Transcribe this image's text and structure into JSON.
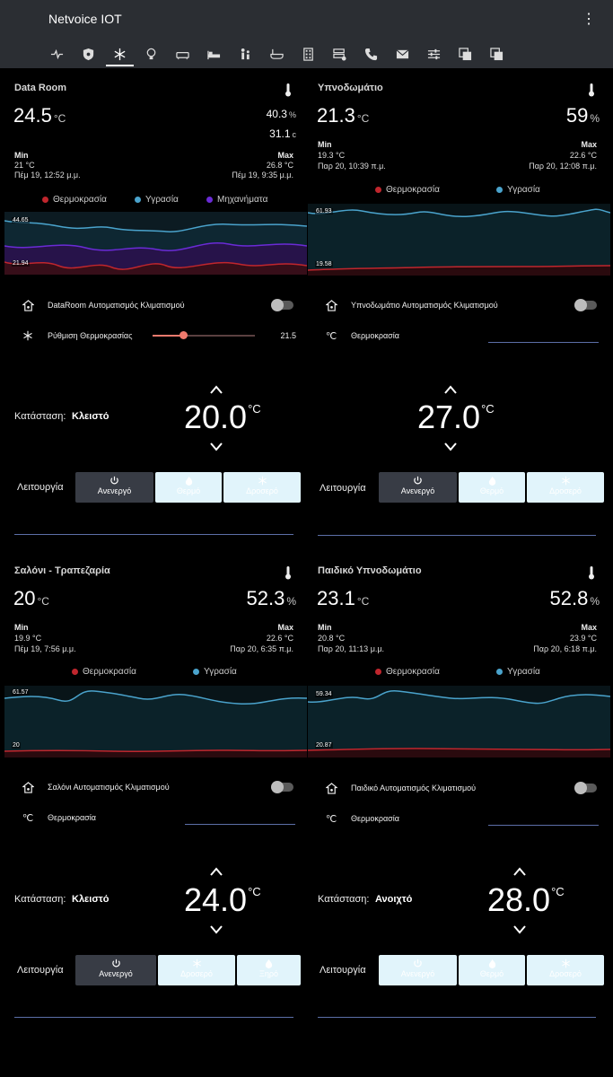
{
  "header": {
    "title": "Netvoice IOT",
    "tabs": [
      "pulse-icon",
      "shield-icon",
      "snowflake-icon",
      "bulb-icon",
      "sofa-icon",
      "bed-icon",
      "kids-icon",
      "bath-icon",
      "building-icon",
      "server-icon",
      "phone-icon",
      "mail-icon",
      "sliders-icon",
      "copy-icon",
      "copy2-icon"
    ],
    "active_tab": 2
  },
  "colors": {
    "temperature": "#c0262d",
    "humidity": "#4aa3cc",
    "machines": "#6a2bd6",
    "accent_line": "#5c6fa8",
    "slider": "#ef7a6d"
  },
  "cards": [
    {
      "title": "Data Room",
      "temp": "24.5",
      "temp_unit": "°C",
      "hum_a": "40.3",
      "hum_a_unit": "%",
      "hum_b": "31.1",
      "hum_b_unit": "c",
      "min_label": "Min",
      "min_val": "21 °C",
      "min_time": "Πέμ 19, 12:52 μ.μ.",
      "max_label": "Max",
      "max_val": "26.8 °C",
      "max_time": "Πέμ 19, 9:35 μ.μ.",
      "legend": [
        "Θερμοκρασία",
        "Υγρασία",
        "Μηχανήματα"
      ],
      "chart_hi": "44.65",
      "chart_lo": "21.94",
      "auto_label": "DataRoom Αυτοματισμός Κλιματισμού",
      "setting_label": "Ρύθμιση Θερμοκρασίας",
      "setting_value": "21.5",
      "setting_fraction": 0.3,
      "state_label": "Κατάσταση:",
      "state_value": "Κλειστό",
      "target": "20.0",
      "target_unit": "°C",
      "mode_label": "Λειτουργία",
      "modes": [
        "Ανενεργό",
        "Θερμό",
        "Δροσερό"
      ]
    },
    {
      "title": "Υπνοδωμάτιο",
      "temp": "21.3",
      "temp_unit": "°C",
      "hum_a": "59",
      "hum_a_unit": "%",
      "min_label": "Min",
      "min_val": "19.3 °C",
      "min_time": "Παρ 20, 10:39 π.μ.",
      "max_label": "Max",
      "max_val": "22.6 °C",
      "max_time": "Παρ 20, 12:08 π.μ.",
      "legend": [
        "Θερμοκρασία",
        "Υγρασία"
      ],
      "chart_hi": "61.93",
      "chart_lo": "19.58",
      "auto_label": "Υπνοδωμάτιο Αυτοματισμός Κλιματισμού",
      "setting_label": "Θερμοκρασία",
      "state_label": "",
      "state_value": "",
      "target": "27.0",
      "target_unit": "°C",
      "mode_label": "Λειτουργία",
      "modes": [
        "Ανενεργό",
        "Θερμό",
        "Δροσερό"
      ]
    },
    {
      "title": "Σαλόνι - Τραπεζαρία",
      "temp": "20",
      "temp_unit": "°C",
      "hum_a": "52.3",
      "hum_a_unit": "%",
      "min_label": "Min",
      "min_val": "19.9 °C",
      "min_time": "Πέμ 19, 7:56 μ.μ.",
      "max_label": "Max",
      "max_val": "22.6 °C",
      "max_time": "Παρ 20, 6:35 π.μ.",
      "legend": [
        "Θερμοκρασία",
        "Υγρασία"
      ],
      "chart_hi": "61.57",
      "chart_lo": "20",
      "auto_label": "Σαλόνι Αυτοματισμός Κλιματισμού",
      "setting_label": "Θερμοκρασία",
      "state_label": "Κατάσταση:",
      "state_value": "Κλειστό",
      "target": "24.0",
      "target_unit": "°C",
      "mode_label": "Λειτουργία",
      "modes": [
        "Ανενεργό",
        "Δροσερό",
        "Ξηρό"
      ]
    },
    {
      "title": "Παιδικό Υπνοδωμάτιο",
      "temp": "23.1",
      "temp_unit": "°C",
      "hum_a": "52.8",
      "hum_a_unit": "%",
      "min_label": "Min",
      "min_val": "20.8 °C",
      "min_time": "Παρ 20, 11:13 μ.μ.",
      "max_label": "Max",
      "max_val": "23.9 °C",
      "max_time": "Παρ 20, 6:18 π.μ.",
      "legend": [
        "Θερμοκρασία",
        "Υγρασία"
      ],
      "chart_hi": "59.34",
      "chart_lo": "20.87",
      "auto_label": "Παιδικό Αυτοματισμός Κλιματισμού",
      "setting_label": "Θερμοκρασία",
      "state_label": "Κατάσταση:",
      "state_value": "Ανοιχτό",
      "target": "28.0",
      "target_unit": "°C",
      "mode_label": "Λειτουργία",
      "modes": [
        "Ανενεργό",
        "Θερμό",
        "Δροσερό"
      ]
    }
  ]
}
